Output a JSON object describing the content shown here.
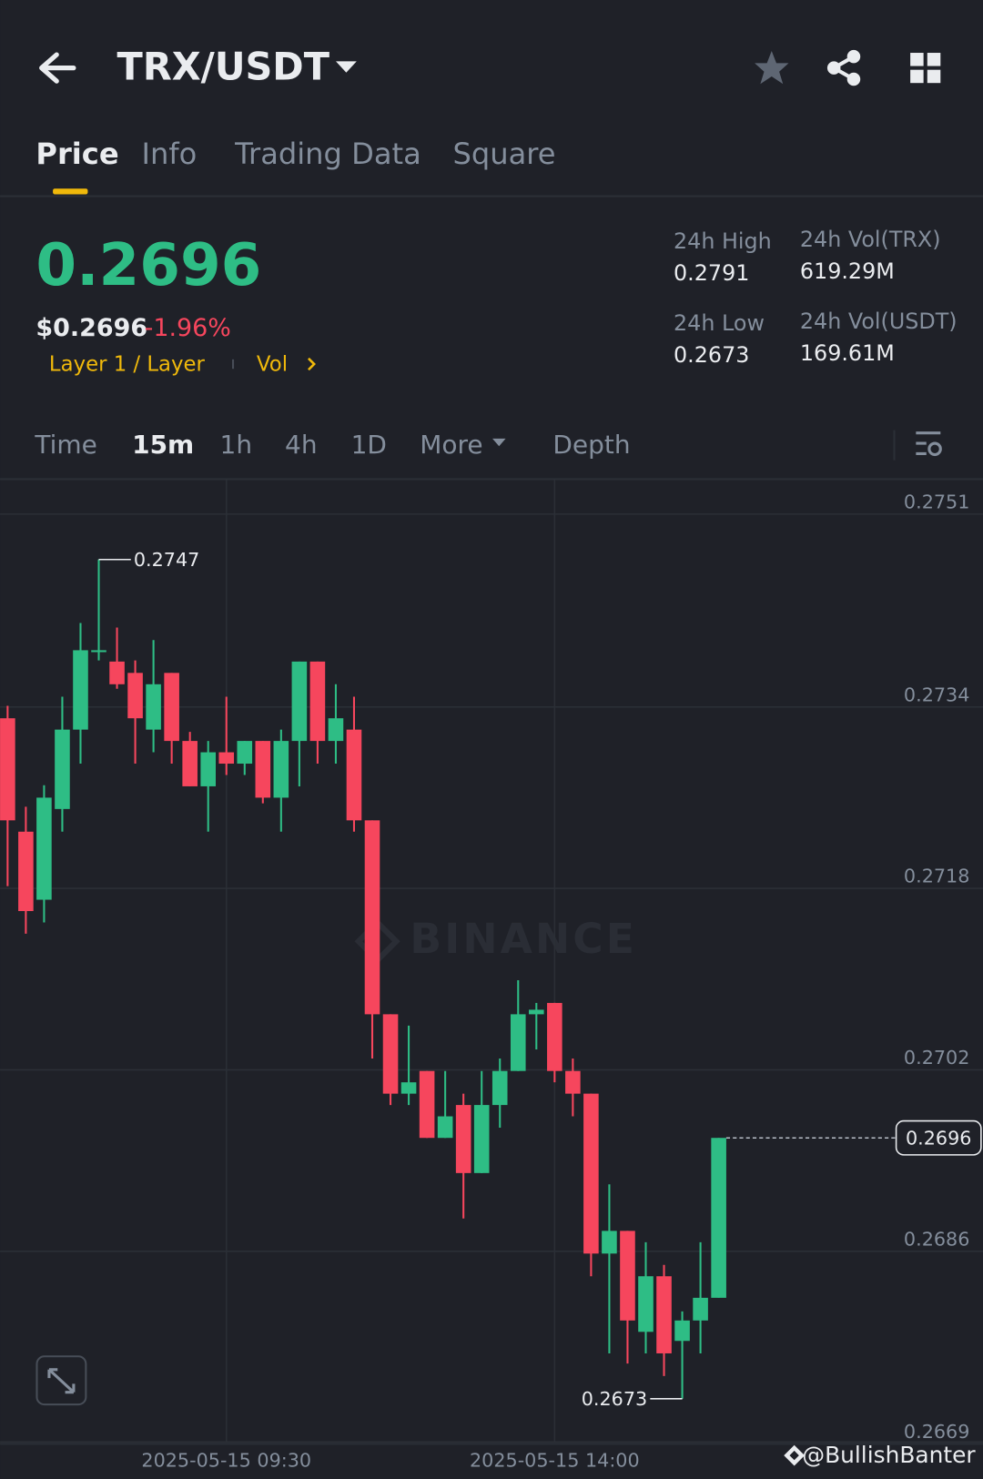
{
  "header": {
    "title": "TRX/USDT"
  },
  "tabs": [
    "Price",
    "Info",
    "Trading Data",
    "Square"
  ],
  "ticker": {
    "price": "0.2696",
    "usd_price": "$0.2696",
    "change": "-1.96%",
    "tags": [
      "Layer 1 / Layer",
      "Vol"
    ],
    "stats": [
      {
        "label": "24h High",
        "value": "0.2791"
      },
      {
        "label": "24h Vol(TRX)",
        "value": "619.29M"
      },
      {
        "label": "24h Low",
        "value": "0.2673"
      },
      {
        "label": "24h Vol(USDT)",
        "value": "169.61M"
      }
    ]
  },
  "intervals": [
    "Time",
    "15m",
    "1h",
    "4h",
    "1D",
    "More",
    "Depth"
  ],
  "chart_data": {
    "type": "candlestick",
    "watermark": "BINANCE",
    "categories": [
      null,
      null,
      null,
      null,
      null,
      null,
      null,
      null,
      null,
      null,
      null,
      null,
      "2025-05-15 09:30",
      null,
      null,
      null,
      null,
      null,
      null,
      null,
      null,
      null,
      null,
      null,
      null,
      null,
      null,
      null,
      null,
      null,
      "2025-05-15 14:00",
      null,
      null,
      null,
      null,
      null,
      null,
      null,
      null,
      null
    ],
    "open": [
      0.2733,
      0.2723,
      0.2717,
      0.2725,
      0.2732,
      0.2739,
      0.2738,
      0.2737,
      0.2732,
      0.2737,
      0.2731,
      0.2727,
      0.273,
      0.2729,
      0.2731,
      0.2726,
      0.2731,
      0.2738,
      0.2731,
      0.2732,
      0.2724,
      0.27069,
      0.26999,
      0.27019,
      0.2696,
      0.26989,
      0.26929,
      0.26989,
      0.27019,
      0.27069,
      0.27079,
      0.27019,
      0.26999,
      0.26858,
      0.26878,
      0.26789,
      0.26838,
      0.26781,
      0.26799,
      0.26819
    ],
    "high": [
      0.27341,
      0.27252,
      0.27271,
      0.27349,
      0.27414,
      0.2747,
      0.2741,
      0.27381,
      0.27399,
      0.2737,
      0.27318,
      0.2731,
      0.27349,
      0.2731,
      0.2731,
      0.2732,
      0.2738,
      0.2738,
      0.2736,
      0.27349,
      0.2724,
      0.27069,
      0.27059,
      0.27019,
      0.27019,
      0.26999,
      0.27019,
      0.2703,
      0.27099,
      0.27079,
      0.27079,
      0.2703,
      0.26999,
      0.26919,
      0.26878,
      0.26868,
      0.26848,
      0.26807,
      0.26868,
      0.2696
    ],
    "low": [
      0.27182,
      0.2714,
      0.2715,
      0.2723,
      0.2729,
      0.27381,
      0.27356,
      0.2729,
      0.273,
      0.2729,
      0.2727,
      0.2723,
      0.2728,
      0.2728,
      0.27255,
      0.2723,
      0.2727,
      0.2729,
      0.2729,
      0.2723,
      0.2703,
      0.26989,
      0.26989,
      0.2696,
      0.2696,
      0.26889,
      0.26929,
      0.26969,
      0.27019,
      0.27038,
      0.27009,
      0.26979,
      0.26838,
      0.2677,
      0.26761,
      0.2677,
      0.2675,
      0.2673,
      0.2677,
      0.26819
    ],
    "close": [
      0.2724,
      0.2716,
      0.2726,
      0.2732,
      0.2739,
      0.2739,
      0.2736,
      0.2733,
      0.2736,
      0.2731,
      0.2727,
      0.273,
      0.2729,
      0.2731,
      0.2726,
      0.2731,
      0.2738,
      0.2731,
      0.2733,
      0.2724,
      0.27069,
      0.26999,
      0.27009,
      0.2696,
      0.26979,
      0.26929,
      0.26989,
      0.27019,
      0.27069,
      0.27073,
      0.27019,
      0.26999,
      0.26858,
      0.26878,
      0.26799,
      0.26838,
      0.2677,
      0.26799,
      0.26819,
      0.2696
    ],
    "up_color": "#2ebd85",
    "down_color": "#f6465d",
    "ylim": [
      0.2669,
      0.2754
    ],
    "yticks": [
      0.2751,
      0.2734,
      0.2718,
      0.2702,
      0.2686,
      0.2669
    ],
    "grid": true,
    "max_label": 0.2747,
    "min_label": 0.2673,
    "last_price": 0.2696
  },
  "credit": "@BullishBanter"
}
